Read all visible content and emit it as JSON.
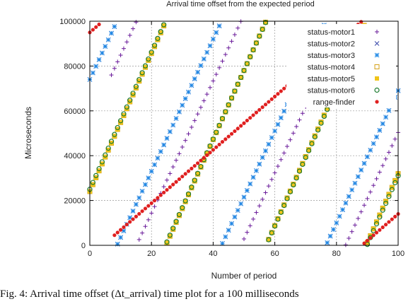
{
  "chart_data": {
    "type": "scatter",
    "title": "Arrival time offset from the expected period",
    "xlabel": "Number of period",
    "ylabel": "Microseconds",
    "xlim": [
      0,
      100
    ],
    "ylim": [
      0,
      100000
    ],
    "xticks": [
      0,
      20,
      40,
      60,
      80,
      100
    ],
    "xtick_labels": [
      "0",
      "20",
      "40",
      "60",
      "80",
      "100"
    ],
    "yticks": [
      0,
      20000,
      40000,
      60000,
      80000,
      100000
    ],
    "ytick_labels": [
      "0",
      "20000",
      "40000",
      "60000",
      "80000",
      "100000"
    ],
    "grid": true,
    "legend_position": "top-right",
    "series": [
      {
        "name": "status-motor1",
        "marker": "plus",
        "color": "#6a1b9a",
        "x0": 7,
        "start": 76000,
        "slope": 2950
      },
      {
        "name": "status-motor2",
        "marker": "cross",
        "color": "#3949ab",
        "x0": 0,
        "start": 74000,
        "slope": 2950
      },
      {
        "name": "status-motor3",
        "marker": "star",
        "color": "#1e88e5",
        "x0": 0,
        "start": 74000,
        "slope": 2950
      },
      {
        "name": "status-motor4",
        "marker": "open-square",
        "color": "#d4a017",
        "x0": 0,
        "start": 24000,
        "slope": 3080
      },
      {
        "name": "status-motor5",
        "marker": "filled-square",
        "color": "#f0c419",
        "x0": 0,
        "start": 24000,
        "slope": 3080
      },
      {
        "name": "status-motor6",
        "marker": "open-circle",
        "color": "#1b7a2e",
        "x0": 0,
        "start": 25000,
        "slope": 3060
      },
      {
        "name": "range-finder",
        "marker": "filled-circle",
        "color": "#e02020",
        "x0": 0,
        "start": 95000,
        "slope": 1190
      }
    ]
  },
  "caption": "Fig. 4: Arrival time offset (Δt_arrival) time plot for a 100 milliseconds"
}
